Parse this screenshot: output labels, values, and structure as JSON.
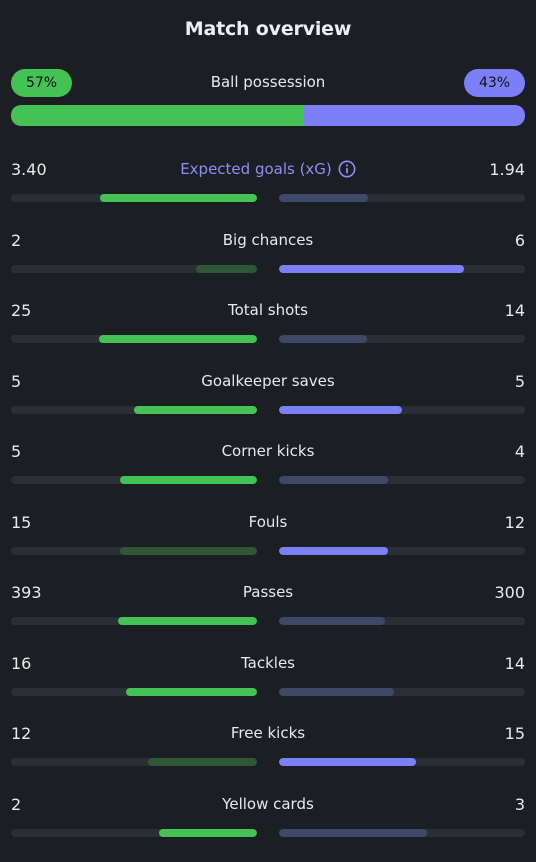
{
  "title": "Match overview",
  "colors": {
    "home_strong": "#45c254",
    "home_weak": "#2f5736",
    "away_strong": "#7b80f9",
    "away_weak": "#404868",
    "accent_text": "#8b8ff5"
  },
  "possession": {
    "label": "Ball possession",
    "home_text": "57%",
    "away_text": "43%",
    "home_pct": 57,
    "away_pct": 43
  },
  "stats": [
    {
      "label": "Expected goals (xG)",
      "home": "3.40",
      "away": "1.94",
      "home_val": 3.4,
      "away_val": 1.94,
      "winner": "home",
      "info": true
    },
    {
      "label": "Big chances",
      "home": "2",
      "away": "6",
      "home_val": 2,
      "away_val": 6,
      "winner": "away"
    },
    {
      "label": "Total shots",
      "home": "25",
      "away": "14",
      "home_val": 25,
      "away_val": 14,
      "winner": "home"
    },
    {
      "label": "Goalkeeper saves",
      "home": "5",
      "away": "5",
      "home_val": 5,
      "away_val": 5,
      "winner": "both"
    },
    {
      "label": "Corner kicks",
      "home": "5",
      "away": "4",
      "home_val": 5,
      "away_val": 4,
      "winner": "home"
    },
    {
      "label": "Fouls",
      "home": "15",
      "away": "12",
      "home_val": 15,
      "away_val": 12,
      "winner": "away"
    },
    {
      "label": "Passes",
      "home": "393",
      "away": "300",
      "home_val": 393,
      "away_val": 300,
      "winner": "home"
    },
    {
      "label": "Tackles",
      "home": "16",
      "away": "14",
      "home_val": 16,
      "away_val": 14,
      "winner": "home"
    },
    {
      "label": "Free kicks",
      "home": "12",
      "away": "15",
      "home_val": 12,
      "away_val": 15,
      "winner": "away"
    },
    {
      "label": "Yellow cards",
      "home": "2",
      "away": "3",
      "home_val": 2,
      "away_val": 3,
      "winner": "home"
    }
  ]
}
